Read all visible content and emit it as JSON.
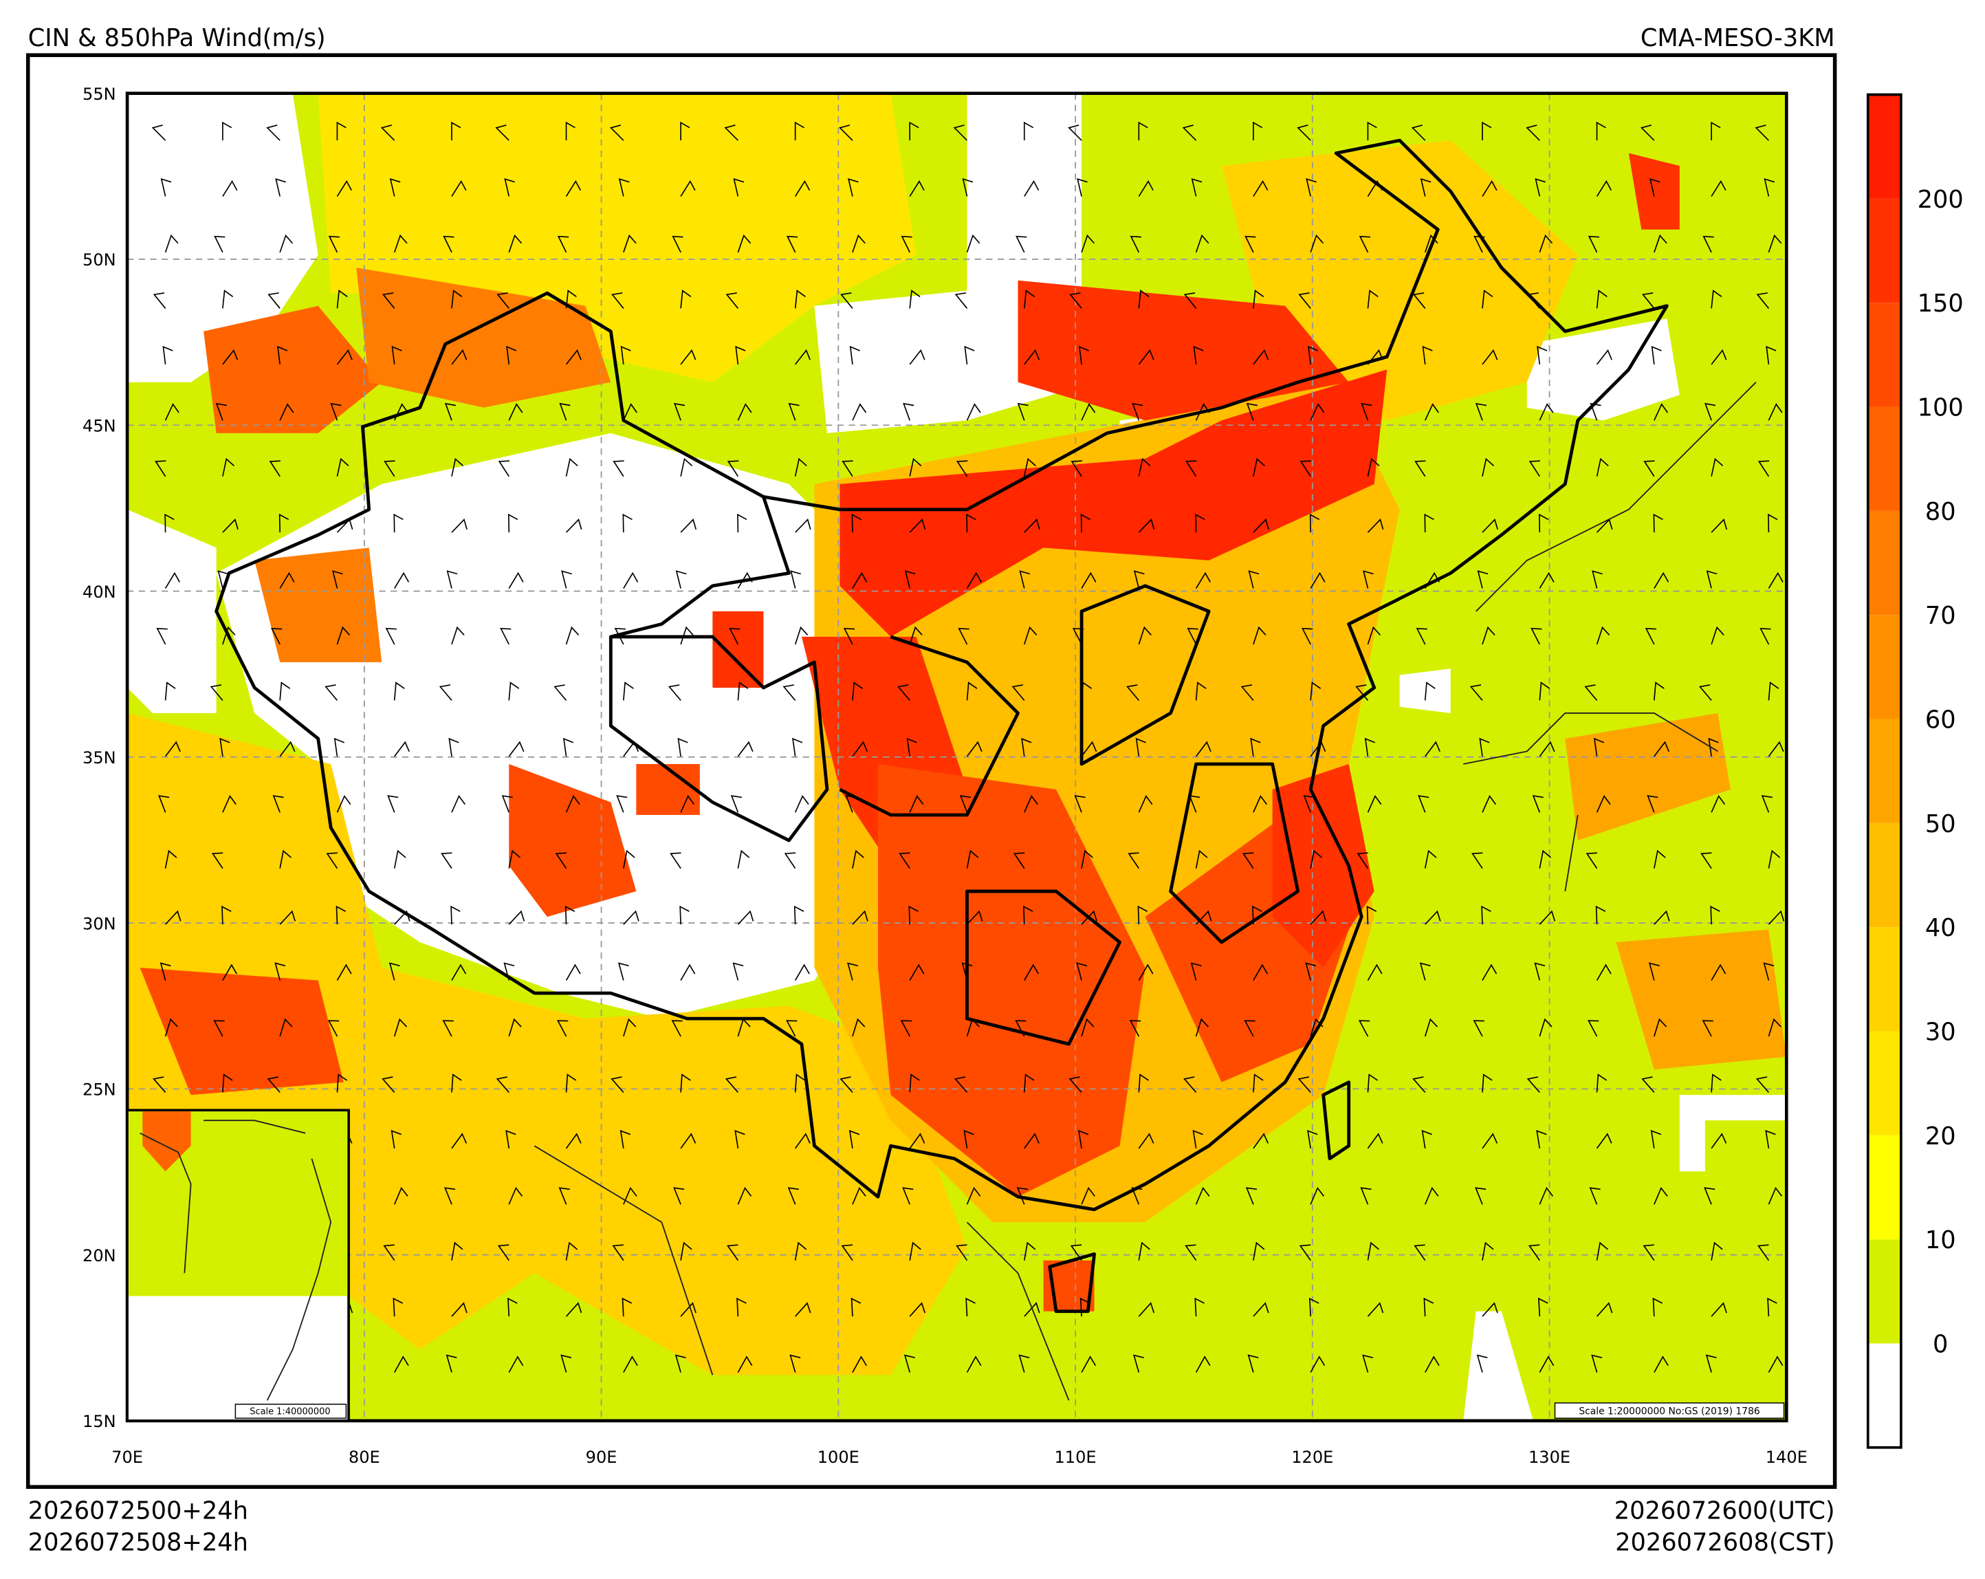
{
  "header": {
    "title": "CIN & 850hPa Wind(m/s)",
    "model": "CMA-MESO-3KM"
  },
  "footer": {
    "init_utc": "2026072500+24h",
    "init_cst": "2026072508+24h",
    "valid_utc": "2026072600(UTC)",
    "valid_cst": "2026072608(CST)"
  },
  "map": {
    "lon_range": [
      70,
      140
    ],
    "lat_range": [
      15,
      55
    ],
    "lat_ticks": [
      {
        "value": 55,
        "label": "55N"
      },
      {
        "value": 50,
        "label": "50N"
      },
      {
        "value": 45,
        "label": "45N"
      },
      {
        "value": 40,
        "label": "40N"
      },
      {
        "value": 35,
        "label": "35N"
      },
      {
        "value": 30,
        "label": "30N"
      },
      {
        "value": 25,
        "label": "25N"
      },
      {
        "value": 20,
        "label": "20N"
      },
      {
        "value": 15,
        "label": "15N"
      }
    ],
    "lon_ticks": [
      {
        "value": 70,
        "label": "70E"
      },
      {
        "value": 80,
        "label": "80E"
      },
      {
        "value": 90,
        "label": "90E"
      },
      {
        "value": 100,
        "label": "100E"
      },
      {
        "value": 110,
        "label": "110E"
      },
      {
        "value": 120,
        "label": "120E"
      },
      {
        "value": 130,
        "label": "130E"
      },
      {
        "value": 140,
        "label": "140E"
      }
    ],
    "grid": true,
    "inset_scale": "Scale 1:40000000",
    "main_scale": "Scale 1:20000000 No:GS (2019) 1786"
  },
  "colorbar": {
    "levels": [
      0,
      10,
      20,
      30,
      40,
      50,
      60,
      70,
      80,
      100,
      150,
      200
    ],
    "colors": [
      "#ffffff",
      "#d4f000",
      "#ffff00",
      "#ffe600",
      "#ffd200",
      "#ffbe00",
      "#ffa500",
      "#ff9100",
      "#ff7d00",
      "#ff6400",
      "#ff4b00",
      "#ff3200",
      "#ff1e00"
    ]
  }
}
